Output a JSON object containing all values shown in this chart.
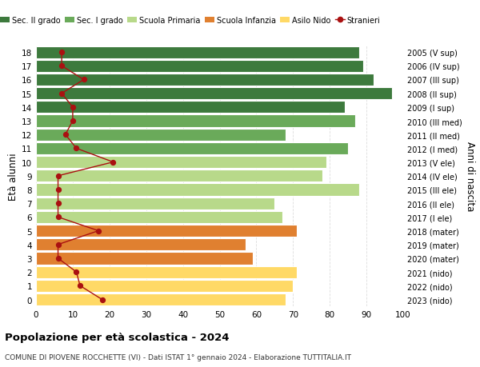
{
  "ages": [
    0,
    1,
    2,
    3,
    4,
    5,
    6,
    7,
    8,
    9,
    10,
    11,
    12,
    13,
    14,
    15,
    16,
    17,
    18
  ],
  "bar_values": [
    68,
    70,
    71,
    59,
    57,
    71,
    67,
    65,
    88,
    78,
    79,
    85,
    68,
    87,
    84,
    97,
    92,
    89,
    88
  ],
  "bar_colors": [
    "#ffd966",
    "#ffd966",
    "#ffd966",
    "#e08030",
    "#e08030",
    "#e08030",
    "#b8d98a",
    "#b8d98a",
    "#b8d98a",
    "#b8d98a",
    "#b8d98a",
    "#6aaa5a",
    "#6aaa5a",
    "#6aaa5a",
    "#3d7a3d",
    "#3d7a3d",
    "#3d7a3d",
    "#3d7a3d",
    "#3d7a3d"
  ],
  "stranieri_values": [
    18,
    12,
    11,
    6,
    6,
    17,
    6,
    6,
    6,
    6,
    21,
    11,
    8,
    10,
    10,
    7,
    13,
    7,
    7
  ],
  "right_labels": [
    "2023 (nido)",
    "2022 (nido)",
    "2021 (nido)",
    "2020 (mater)",
    "2019 (mater)",
    "2018 (mater)",
    "2017 (I ele)",
    "2016 (II ele)",
    "2015 (III ele)",
    "2014 (IV ele)",
    "2013 (V ele)",
    "2012 (I med)",
    "2011 (II med)",
    "2010 (III med)",
    "2009 (I sup)",
    "2008 (II sup)",
    "2007 (III sup)",
    "2006 (IV sup)",
    "2005 (V sup)"
  ],
  "legend_labels": [
    "Sec. II grado",
    "Sec. I grado",
    "Scuola Primaria",
    "Scuola Infanzia",
    "Asilo Nido",
    "Stranieri"
  ],
  "legend_colors": [
    "#3d7a3d",
    "#6aaa5a",
    "#b8d98a",
    "#e08030",
    "#ffd966",
    "#cc0000"
  ],
  "ylabel": "Età alunni",
  "right_ylabel": "Anni di nascita",
  "title": "Popolazione per età scolastica - 2024",
  "subtitle": "COMUNE DI PIOVENE ROCCHETTE (VI) - Dati ISTAT 1° gennaio 2024 - Elaborazione TUTTITALIA.IT",
  "xlim": [
    0,
    100
  ],
  "bg_color": "#ffffff",
  "stranieri_color": "#aa1111",
  "grid_color": "#dddddd"
}
